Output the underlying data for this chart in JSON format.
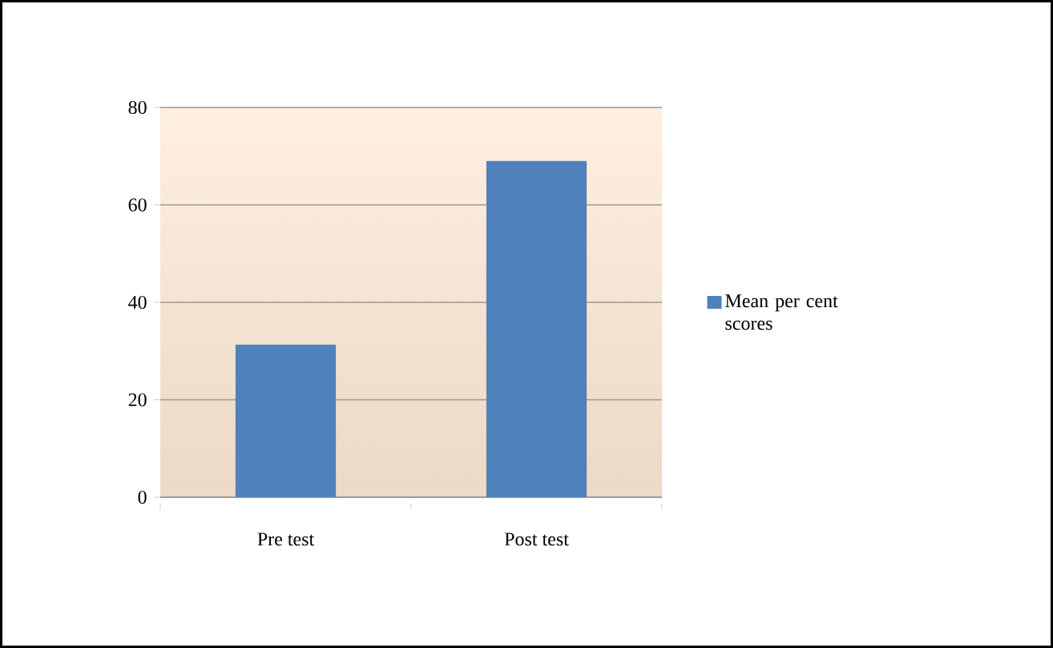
{
  "chart_data": {
    "type": "bar",
    "categories": [
      "Pre test",
      "Post test"
    ],
    "series": [
      {
        "name": "Mean per cent scores",
        "color": "#4f81bd",
        "values": [
          31.3,
          69
        ]
      }
    ],
    "ylim": [
      0,
      80
    ],
    "yticks": [
      0,
      20,
      40,
      60,
      80
    ],
    "grid": "y",
    "legend": "right"
  }
}
